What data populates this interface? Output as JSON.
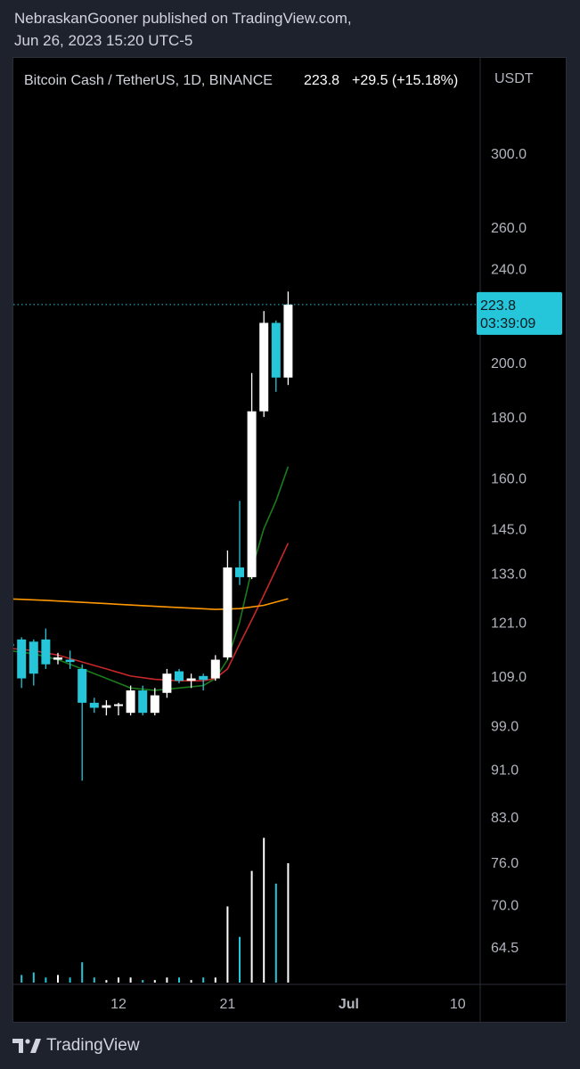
{
  "header": {
    "line1": "NebraskanGooner published on TradingView.com,",
    "line2": "Jun 26, 2023 15:20 UTC-5"
  },
  "symbol_bar": {
    "symbol": "Bitcoin Cash / TetherUS, 1D, BINANCE",
    "last": "223.8",
    "change": "+29.5 (+15.18%)"
  },
  "price_axis": {
    "currency": "USDT",
    "current_price": "223.8",
    "countdown": "03:39:09"
  },
  "footer": {
    "brand": "TradingView"
  },
  "colors": {
    "up": "#ffffff",
    "down": "#26c6da",
    "ma_fast": "#1b7a1b",
    "ma_slow": "#c62828",
    "ma_long": "#ff9800",
    "price_tag": "#26c6da"
  },
  "chart_data": {
    "type": "candlestick",
    "title": "Bitcoin Cash / TetherUS, 1D, BINANCE",
    "y_scale": "log",
    "y_ticks": [
      64.5,
      70.0,
      76.0,
      83.0,
      91.0,
      99.0,
      109.0,
      121.0,
      133.0,
      145.0,
      160.0,
      180.0,
      200.0,
      240.0,
      260.0,
      300.0
    ],
    "y_tick_labels": [
      "64.5",
      "70.0",
      "76.0",
      "83.0",
      "91.0",
      "99.0",
      "109.0",
      "121.0",
      "133.0",
      "145.0",
      "160.0",
      "180.0",
      "200.0",
      "240.0",
      "260.0",
      "300.0"
    ],
    "x_tick_labels": [
      {
        "label": "12",
        "day": 12
      },
      {
        "label": "21",
        "day": 21
      },
      {
        "label": "Jul",
        "day": 31
      },
      {
        "label": "10",
        "day": 40
      }
    ],
    "candles": [
      {
        "day": 3,
        "o": 116.0,
        "h": 117.5,
        "l": 113.5,
        "c": 115.5
      },
      {
        "day": 4,
        "o": 117.0,
        "h": 117.5,
        "l": 106.5,
        "c": 108.5
      },
      {
        "day": 5,
        "o": 116.5,
        "h": 117.0,
        "l": 107.0,
        "c": 109.5
      },
      {
        "day": 6,
        "o": 117.0,
        "h": 119.5,
        "l": 110.5,
        "c": 111.5
      },
      {
        "day": 7,
        "o": 112.5,
        "h": 114.0,
        "l": 111.5,
        "c": 113.0
      },
      {
        "day": 8,
        "o": 112.5,
        "h": 114.5,
        "l": 110.5,
        "c": 112.0
      },
      {
        "day": 9,
        "o": 110.5,
        "h": 111.5,
        "l": 89.0,
        "c": 103.5
      },
      {
        "day": 10,
        "o": 103.5,
        "h": 104.5,
        "l": 101.5,
        "c": 102.5
      },
      {
        "day": 11,
        "o": 102.5,
        "h": 104.0,
        "l": 101.0,
        "c": 103.0
      },
      {
        "day": 12,
        "o": 103.0,
        "h": 103.5,
        "l": 101.0,
        "c": 103.2
      },
      {
        "day": 13,
        "o": 101.5,
        "h": 107.0,
        "l": 101.0,
        "c": 106.0
      },
      {
        "day": 14,
        "o": 106.0,
        "h": 107.0,
        "l": 101.0,
        "c": 101.5
      },
      {
        "day": 15,
        "o": 101.5,
        "h": 106.5,
        "l": 101.0,
        "c": 105.0
      },
      {
        "day": 16,
        "o": 105.5,
        "h": 110.5,
        "l": 104.5,
        "c": 109.5
      },
      {
        "day": 17,
        "o": 110.0,
        "h": 110.5,
        "l": 107.5,
        "c": 108.0
      },
      {
        "day": 18,
        "o": 108.0,
        "h": 109.5,
        "l": 106.5,
        "c": 108.5
      },
      {
        "day": 19,
        "o": 109.0,
        "h": 109.5,
        "l": 106.0,
        "c": 108.2
      },
      {
        "day": 20,
        "o": 108.5,
        "h": 113.5,
        "l": 108.0,
        "c": 112.5
      },
      {
        "day": 21,
        "o": 113.0,
        "h": 139.0,
        "l": 112.5,
        "c": 134.5
      },
      {
        "day": 22,
        "o": 134.5,
        "h": 153.0,
        "l": 130.0,
        "c": 132.0
      },
      {
        "day": 23,
        "o": 132.0,
        "h": 196.0,
        "l": 131.5,
        "c": 182.0
      },
      {
        "day": 24,
        "o": 182.0,
        "h": 221.0,
        "l": 180.0,
        "c": 216.0
      },
      {
        "day": 25,
        "o": 216.0,
        "h": 217.0,
        "l": 189.0,
        "c": 194.3
      },
      {
        "day": 26,
        "o": 194.3,
        "h": 229.5,
        "l": 191.5,
        "c": 223.8
      }
    ],
    "volume": [
      0.04,
      0.03,
      0.04,
      0.02,
      0.03,
      0.02,
      0.08,
      0.02,
      0.01,
      0.02,
      0.02,
      0.01,
      0.01,
      0.02,
      0.02,
      0.01,
      0.02,
      0.02,
      0.3,
      0.18,
      0.44,
      0.57,
      0.39,
      0.47
    ],
    "series": [
      {
        "name": "",
        "color_key": "ma_fast",
        "day": [
          3,
          5,
          7,
          9,
          11,
          13,
          15,
          17,
          19,
          20,
          21,
          22,
          23,
          24,
          25,
          26
        ],
        "values": [
          114.5,
          113.8,
          112.5,
          110.5,
          108.5,
          106.5,
          106.0,
          106.5,
          107.0,
          108.5,
          112.5,
          121.0,
          134.0,
          145.0,
          153.0,
          163.5
        ]
      },
      {
        "name": "",
        "color_key": "ma_slow",
        "day": [
          3,
          5,
          7,
          9,
          11,
          13,
          15,
          17,
          19,
          20,
          21,
          22,
          23,
          24,
          25,
          26
        ],
        "values": [
          115.0,
          114.5,
          113.5,
          112.0,
          110.5,
          109.0,
          108.3,
          108.0,
          108.0,
          108.5,
          110.5,
          116.0,
          121.5,
          127.5,
          134.0,
          141.0
        ]
      },
      {
        "name": "",
        "color_key": "ma_long",
        "day": [
          1,
          6,
          11,
          16,
          20,
          22,
          24,
          26
        ],
        "values": [
          126.8,
          126.2,
          125.4,
          124.6,
          124.0,
          124.2,
          125.0,
          126.6
        ]
      }
    ]
  }
}
